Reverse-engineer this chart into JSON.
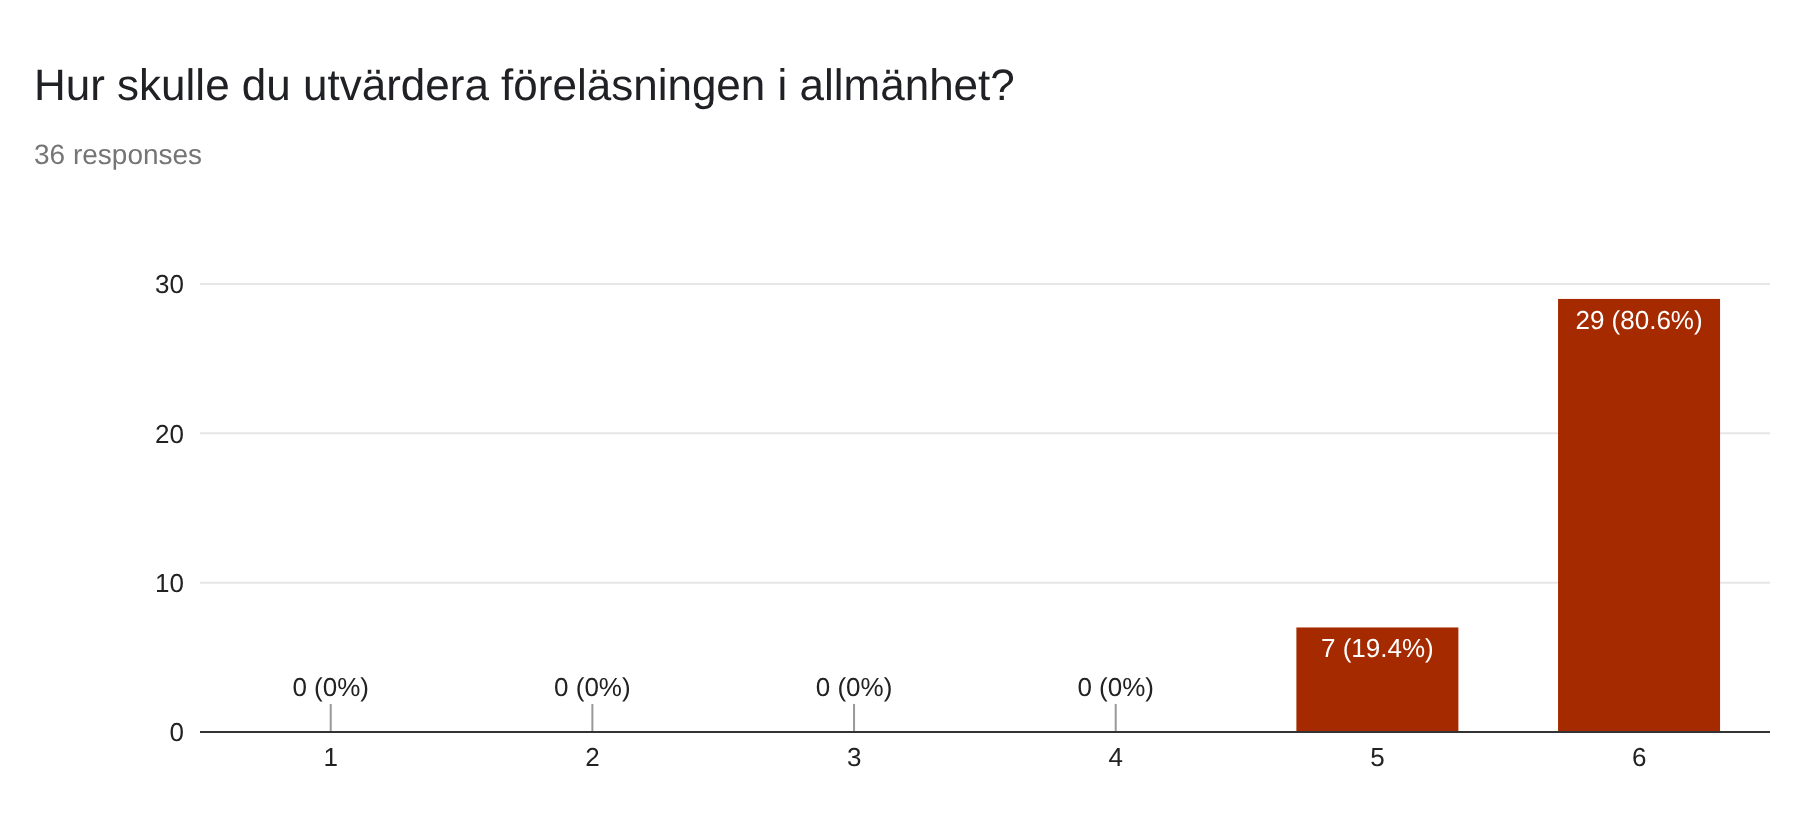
{
  "chart_data": {
    "type": "bar",
    "title": "Hur skulle du utvärdera föreläsningen i allmänhet?",
    "subtitle": "36 responses",
    "categories": [
      "1",
      "2",
      "3",
      "4",
      "5",
      "6"
    ],
    "values": [
      0,
      0,
      0,
      0,
      7,
      29
    ],
    "color": "#a52a00",
    "value_labels": [
      "0 (0%)",
      "0 (0%)",
      "0 (0%)",
      "0 (0%)",
      "7 (19.4%)",
      "29 (80.6%)"
    ],
    "ylim": [
      0,
      30
    ],
    "yticks": [
      0,
      10,
      20,
      30
    ],
    "grid": "y",
    "legend": false
  }
}
